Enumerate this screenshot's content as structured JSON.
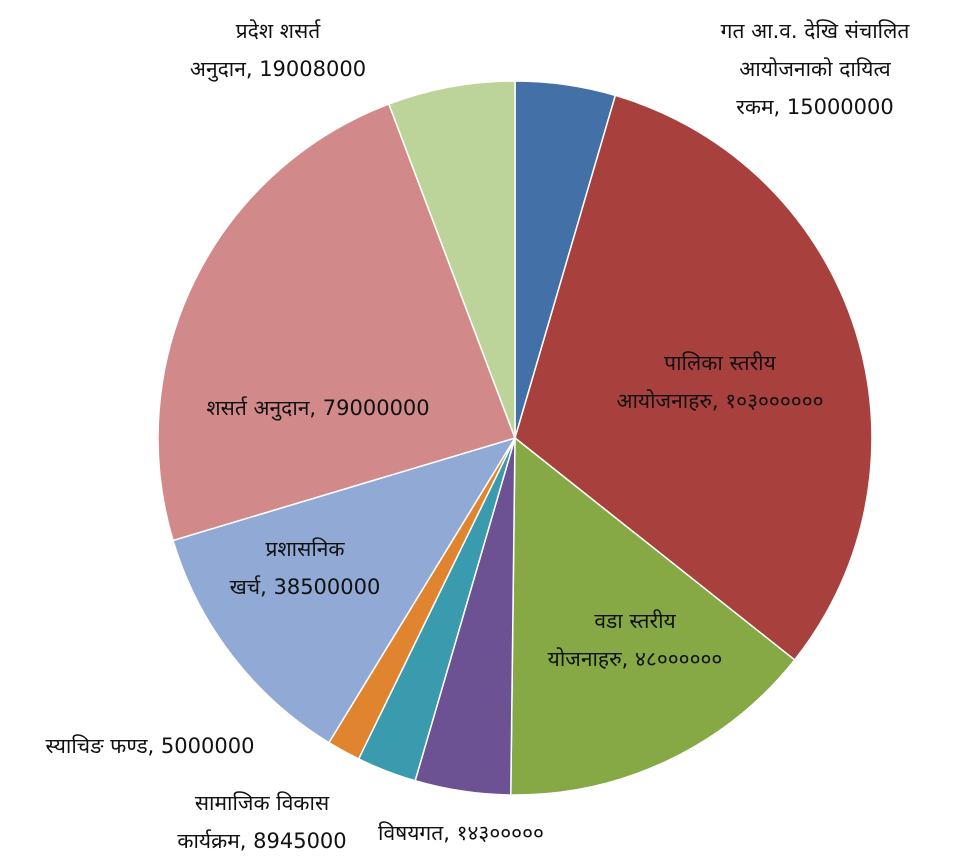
{
  "chart_data": {
    "type": "pie",
    "title": "",
    "slices": [
      {
        "label_lines": [
          "गत आ.व. देखि संचालित",
          "आयोजनाको दायित्व",
          "रकम, 15000000"
        ],
        "value": 15000000,
        "color": "#4470A8"
      },
      {
        "label_lines": [
          "पालिका स्तरीय",
          "आयोजनाहरु, १०३००००००"
        ],
        "value": 103000000,
        "color": "#A8403D"
      },
      {
        "label_lines": [
          "वडा स्तरीय",
          "योजनाहरु, ४८००००००"
        ],
        "value": 48000000,
        "color": "#86A845"
      },
      {
        "label_lines": [
          "विषयगत, १४३०००००"
        ],
        "value": 14300000,
        "color": "#6C5293"
      },
      {
        "label_lines": [
          "सामाजिक विकास",
          "कार्यक्रम, 8945000"
        ],
        "value": 8945000,
        "color": "#3A9AAE"
      },
      {
        "label_lines": [
          "स्याचिङ फण्ड, 5000000"
        ],
        "value": 5000000,
        "color": "#E0842F"
      },
      {
        "label_lines": [
          "प्रशासनिक",
          "खर्च, 38500000"
        ],
        "value": 38500000,
        "color": "#90A9D5"
      },
      {
        "label_lines": [
          "शसर्त अनुदान, 79000000"
        ],
        "value": 79000000,
        "color": "#D2898A"
      },
      {
        "label_lines": [
          "प्रदेश शसर्त",
          "अनुदान, 19008000"
        ],
        "value": 19008000,
        "color": "#BCD39A"
      }
    ]
  }
}
